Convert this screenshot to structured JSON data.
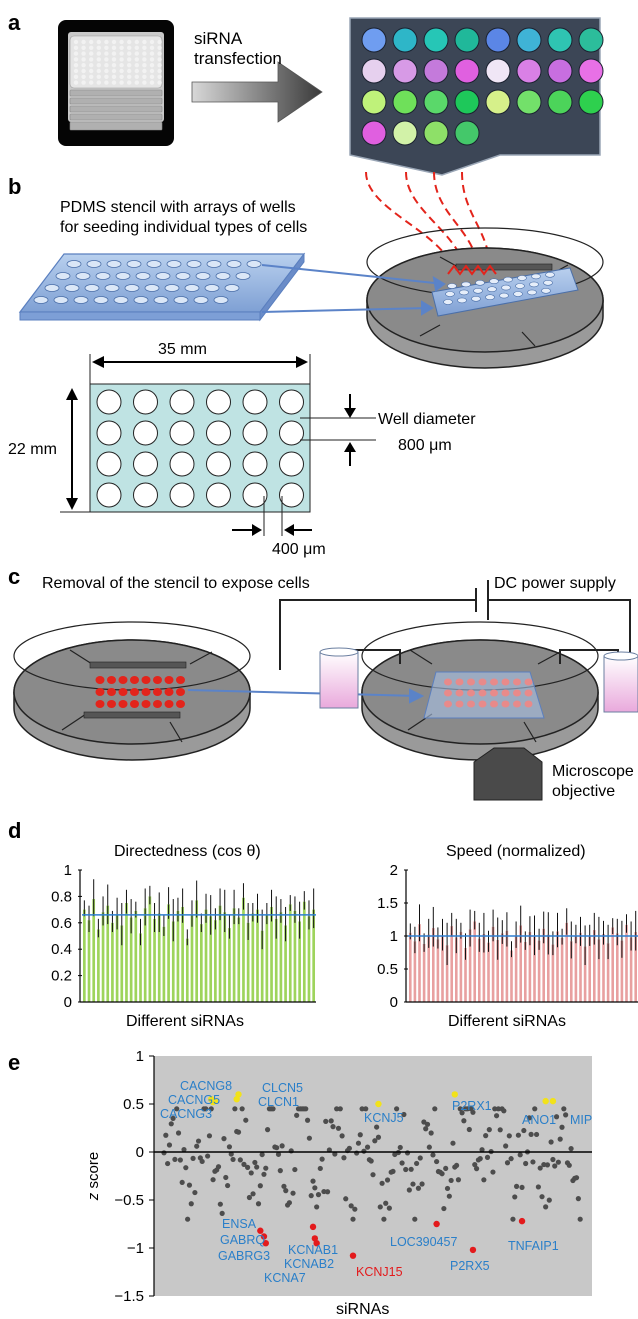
{
  "panels": {
    "a": "a",
    "b": "b",
    "c": "c",
    "d": "d",
    "e": "e"
  },
  "a": {
    "arrow_label_1": "siRNA",
    "arrow_label_2": "transfection",
    "plate_colors": [
      [
        "#6f9df0",
        "#2eb6c8",
        "#26c6b6",
        "#20b89a",
        "#5b86e6",
        "#3fb3d6",
        "#2fc4b2",
        "#2cbd9b"
      ],
      [
        "#e6d0ee",
        "#d79ae6",
        "#c47adb",
        "#e060e0",
        "#f0e6f6",
        "#d980e6",
        "#c86ee0",
        "#e870e6"
      ],
      [
        "#bff27a",
        "#6fe05a",
        "#5ad86a",
        "#1ec85a",
        "#d6f08a",
        "#73e06a",
        "#4cd45a",
        "#2ed04e"
      ],
      [
        "#e05fe0",
        "#d2f2a8",
        "#8ee068",
        "#44c86a"
      ]
    ]
  },
  "b": {
    "caption_line1": "PDMS stencil with arrays of wells",
    "caption_line2": "for seeding individual types of cells",
    "width_label": "35 mm",
    "height_label": "22 mm",
    "well_label_1": "Well diameter",
    "well_label_2": "800 μm",
    "gap_label": "400 μm"
  },
  "c": {
    "caption": "Removal of the stencil to expose cells",
    "power_label": "DC power supply",
    "micro_label_1": "Microscope",
    "micro_label_2": "objective"
  },
  "d": {
    "left": {
      "title": "Directedness (cos θ)",
      "xlabel": "Different siRNAs",
      "yticks": [
        "0",
        "0.2",
        "0.4",
        "0.6",
        "0.8",
        "1"
      ],
      "bar_color": "#9ed45c"
    },
    "right": {
      "title": "Speed (normalized)",
      "xlabel": "Different siRNAs",
      "yticks": [
        "0",
        "0.5",
        "1",
        "1.5",
        "2"
      ],
      "bar_color": "#e8a0a0"
    }
  },
  "chart_data": [
    {
      "type": "bar",
      "title": "Directedness (cos θ)",
      "xlabel": "Different siRNAs",
      "ylabel": "",
      "ylim": [
        0,
        1
      ],
      "mean_line": 0.66,
      "values": [
        0.7,
        0.62,
        0.78,
        0.55,
        0.68,
        0.73,
        0.6,
        0.66,
        0.58,
        0.75,
        0.64,
        0.69,
        0.52,
        0.71,
        0.8,
        0.63,
        0.67,
        0.57,
        0.74,
        0.61,
        0.69,
        0.72,
        0.48,
        0.66,
        0.77,
        0.59,
        0.7,
        0.65,
        0.62,
        0.73,
        0.68,
        0.56,
        0.71,
        0.64,
        0.79,
        0.6,
        0.67,
        0.7,
        0.54,
        0.66,
        0.72,
        0.63,
        0.68,
        0.58,
        0.74,
        0.69,
        0.61,
        0.76,
        0.65,
        0.7
      ]
    },
    {
      "type": "bar",
      "title": "Speed (normalized)",
      "xlabel": "Different siRNAs",
      "ylabel": "",
      "ylim": [
        0,
        2
      ],
      "mean_line": 1.0,
      "values": [
        1.05,
        0.92,
        1.18,
        0.88,
        1.02,
        1.12,
        0.95,
        1.0,
        0.86,
        1.15,
        0.98,
        1.06,
        0.82,
        1.1,
        1.22,
        0.96,
        1.03,
        0.9,
        1.14,
        0.94,
        1.04,
        1.08,
        0.78,
        1.0,
        1.16,
        0.91,
        1.06,
        0.99,
        0.93,
        1.11,
        1.02,
        0.87,
        1.07,
        0.97,
        1.2,
        0.92,
        1.01,
        1.05,
        0.84,
        0.99,
        1.09,
        0.95,
        1.03,
        0.89,
        1.13,
        1.04,
        0.93,
        1.17,
        0.98,
        1.06
      ]
    },
    {
      "type": "scatter",
      "title": "",
      "xlabel": "siRNAs",
      "ylabel": "z score",
      "ylim": [
        -1.5,
        1
      ],
      "yticks": [
        "1",
        "0.5",
        "0",
        "−0.5",
        "−1",
        "−1.5"
      ],
      "colors": {
        "normal": "#4d4d4d",
        "high": "#f2e21a",
        "low": "#e31a1c",
        "label_blue": "#2a7fc9",
        "label_red": "#e31a1c",
        "background": "#c8c8c8"
      },
      "highlight_high": [
        {
          "name": "CACNG8",
          "x": 26,
          "y": 0.55
        },
        {
          "name": "CACNG5",
          "x": 27,
          "y": 0.52
        },
        {
          "name": "CACNG3",
          "x": 28,
          "y": 0.53
        },
        {
          "name": "CLCN5",
          "x": 41,
          "y": 0.6
        },
        {
          "name": "CLCN1",
          "x": 40,
          "y": 0.55
        },
        {
          "name": "KCNJ5",
          "x": 118,
          "y": 0.5
        },
        {
          "name": "P2RX1",
          "x": 160,
          "y": 0.6
        },
        {
          "name": "ANO1",
          "x": 210,
          "y": 0.53
        },
        {
          "name": "MIP",
          "x": 214,
          "y": 0.53
        }
      ],
      "highlight_low": [
        {
          "name": "ENSA",
          "x": 53,
          "y": -0.82
        },
        {
          "name": "GABRQ",
          "x": 55,
          "y": -0.88
        },
        {
          "name": "GABRG3",
          "x": 56,
          "y": -0.95
        },
        {
          "name": "KCNAB1",
          "x": 82,
          "y": -0.78
        },
        {
          "name": "KCNAB2",
          "x": 83,
          "y": -0.9
        },
        {
          "name": "KCNA7",
          "x": 84,
          "y": -0.95
        },
        {
          "name": "KCNJ15",
          "x": 104,
          "y": -1.08
        },
        {
          "name": "LOC390457",
          "x": 150,
          "y": -0.75
        },
        {
          "name": "P2RX5",
          "x": 170,
          "y": -1.02
        },
        {
          "name": "TNFAIP1",
          "x": 197,
          "y": -0.72
        }
      ]
    }
  ]
}
